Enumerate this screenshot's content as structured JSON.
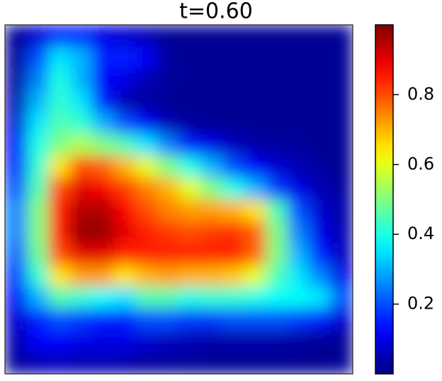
{
  "chart_data": {
    "type": "heatmap",
    "title": "t=0.60",
    "colormap": "jet",
    "zlim": [
      0,
      1
    ],
    "cticks": [
      0.2,
      0.4,
      0.6,
      0.8
    ],
    "z": [
      [
        0.02,
        0.08,
        0.15,
        0.15,
        0.1,
        0.08,
        0.05,
        0.02,
        0.02,
        0.02,
        0.02,
        0.02,
        0.02,
        0.02,
        0.02,
        0.02
      ],
      [
        0.03,
        0.2,
        0.35,
        0.3,
        0.15,
        0.15,
        0.12,
        0.03,
        0.02,
        0.02,
        0.02,
        0.02,
        0.02,
        0.02,
        0.02,
        0.02
      ],
      [
        0.03,
        0.25,
        0.4,
        0.3,
        0.12,
        0.1,
        0.05,
        0.03,
        0.02,
        0.02,
        0.02,
        0.02,
        0.02,
        0.02,
        0.02,
        0.02
      ],
      [
        0.05,
        0.3,
        0.42,
        0.35,
        0.15,
        0.05,
        0.03,
        0.02,
        0.02,
        0.02,
        0.02,
        0.02,
        0.02,
        0.02,
        0.02,
        0.02
      ],
      [
        0.08,
        0.35,
        0.45,
        0.42,
        0.3,
        0.2,
        0.12,
        0.05,
        0.03,
        0.02,
        0.02,
        0.02,
        0.02,
        0.02,
        0.02,
        0.02
      ],
      [
        0.12,
        0.4,
        0.5,
        0.55,
        0.5,
        0.45,
        0.35,
        0.25,
        0.15,
        0.1,
        0.06,
        0.04,
        0.03,
        0.03,
        0.02,
        0.02
      ],
      [
        0.15,
        0.42,
        0.65,
        0.8,
        0.78,
        0.7,
        0.6,
        0.5,
        0.4,
        0.3,
        0.2,
        0.12,
        0.08,
        0.05,
        0.03,
        0.02
      ],
      [
        0.2,
        0.45,
        0.8,
        0.9,
        0.88,
        0.82,
        0.75,
        0.7,
        0.6,
        0.5,
        0.4,
        0.3,
        0.18,
        0.1,
        0.05,
        0.03
      ],
      [
        0.25,
        0.5,
        0.85,
        0.95,
        0.95,
        0.88,
        0.8,
        0.75,
        0.72,
        0.72,
        0.7,
        0.65,
        0.45,
        0.2,
        0.08,
        0.04
      ],
      [
        0.25,
        0.5,
        0.85,
        0.98,
        0.98,
        0.9,
        0.85,
        0.82,
        0.8,
        0.82,
        0.83,
        0.78,
        0.5,
        0.25,
        0.1,
        0.05
      ],
      [
        0.22,
        0.48,
        0.8,
        0.9,
        0.9,
        0.85,
        0.85,
        0.85,
        0.85,
        0.85,
        0.85,
        0.78,
        0.5,
        0.3,
        0.15,
        0.06
      ],
      [
        0.18,
        0.42,
        0.65,
        0.72,
        0.72,
        0.65,
        0.7,
        0.72,
        0.7,
        0.7,
        0.68,
        0.6,
        0.45,
        0.35,
        0.25,
        0.1
      ],
      [
        0.12,
        0.3,
        0.45,
        0.42,
        0.38,
        0.35,
        0.45,
        0.45,
        0.4,
        0.42,
        0.42,
        0.4,
        0.38,
        0.38,
        0.35,
        0.2
      ],
      [
        0.08,
        0.15,
        0.2,
        0.18,
        0.15,
        0.15,
        0.2,
        0.2,
        0.18,
        0.18,
        0.2,
        0.2,
        0.2,
        0.18,
        0.15,
        0.08
      ],
      [
        0.05,
        0.12,
        0.12,
        0.1,
        0.1,
        0.1,
        0.08,
        0.06,
        0.05,
        0.04,
        0.04,
        0.04,
        0.04,
        0.03,
        0.02,
        0.02
      ],
      [
        0.03,
        0.05,
        0.06,
        0.05,
        0.05,
        0.04,
        0.03,
        0.03,
        0.02,
        0.02,
        0.02,
        0.02,
        0.02,
        0.02,
        0.02,
        0.02
      ]
    ]
  }
}
